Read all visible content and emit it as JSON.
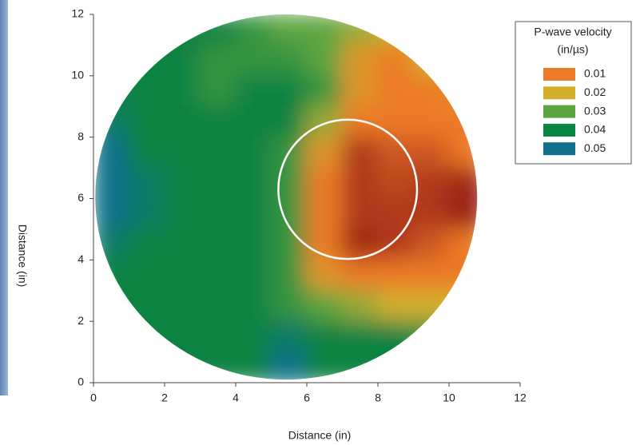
{
  "chart_data": {
    "type": "contour",
    "xlabel": "Distance (in)",
    "ylabel": "Distance (in)",
    "xlim": [
      0,
      12
    ],
    "ylim": [
      0,
      12
    ],
    "xticks": [
      0,
      2,
      4,
      6,
      8,
      10,
      12
    ],
    "yticks": [
      0,
      2,
      4,
      6,
      8,
      10,
      12
    ],
    "legend_title": [
      "P-wave velocity",
      "(in/µs)"
    ],
    "levels": [
      0.01,
      0.02,
      0.03,
      0.04,
      0.05
    ],
    "level_colors": [
      "#ec7a28",
      "#d2b02e",
      "#5da540",
      "#0b8342",
      "#11708a"
    ],
    "extent": {
      "cx": 5.42,
      "cy": 6.05,
      "rx": 5.37,
      "ry": 5.95
    },
    "highlight": {
      "cx": 7.15,
      "cy": 6.3,
      "rx": 1.95,
      "ry": 2.27
    },
    "x": [
      0.5,
      1.5,
      2.5,
      3.5,
      4.5,
      5.5,
      6.5,
      7.5,
      8.5,
      9.5,
      10.5
    ],
    "y": [
      11.5,
      10.5,
      9.5,
      8.5,
      7.5,
      6.5,
      5.5,
      4.5,
      3.5,
      2.5,
      1.5,
      0.5
    ],
    "z": [
      [
        0.04,
        0.04,
        0.04,
        0.04,
        0.035,
        0.03,
        0.03,
        0.025,
        0.02,
        0.02,
        0.02
      ],
      [
        0.04,
        0.04,
        0.04,
        0.035,
        0.035,
        0.035,
        0.03,
        0.015,
        0.01,
        0.02,
        0.02
      ],
      [
        0.04,
        0.04,
        0.04,
        0.035,
        0.04,
        0.04,
        0.035,
        0.015,
        0.01,
        0.01,
        0.015
      ],
      [
        0.045,
        0.04,
        0.04,
        0.04,
        0.04,
        0.04,
        0.025,
        0.01,
        0.01,
        0.01,
        0.01
      ],
      [
        0.05,
        0.04,
        0.04,
        0.04,
        0.04,
        0.035,
        0.015,
        0.006,
        0.008,
        0.008,
        0.01
      ],
      [
        0.05,
        0.045,
        0.04,
        0.04,
        0.04,
        0.035,
        0.01,
        0.006,
        0.007,
        0.006,
        0.005
      ],
      [
        0.05,
        0.045,
        0.04,
        0.04,
        0.04,
        0.035,
        0.01,
        0.006,
        0.006,
        0.006,
        0.004
      ],
      [
        0.045,
        0.04,
        0.04,
        0.04,
        0.04,
        0.035,
        0.01,
        0.005,
        0.006,
        0.008,
        0.01
      ],
      [
        0.04,
        0.04,
        0.04,
        0.04,
        0.04,
        0.035,
        0.015,
        0.01,
        0.01,
        0.01,
        0.01
      ],
      [
        0.04,
        0.04,
        0.04,
        0.04,
        0.04,
        0.035,
        0.03,
        0.025,
        0.02,
        0.02,
        0.02
      ],
      [
        0.04,
        0.04,
        0.04,
        0.04,
        0.04,
        0.045,
        0.04,
        0.04,
        0.04,
        0.035,
        0.03
      ],
      [
        0.04,
        0.04,
        0.04,
        0.04,
        0.04,
        0.05,
        0.04,
        0.04,
        0.04,
        0.04,
        0.04
      ]
    ]
  }
}
